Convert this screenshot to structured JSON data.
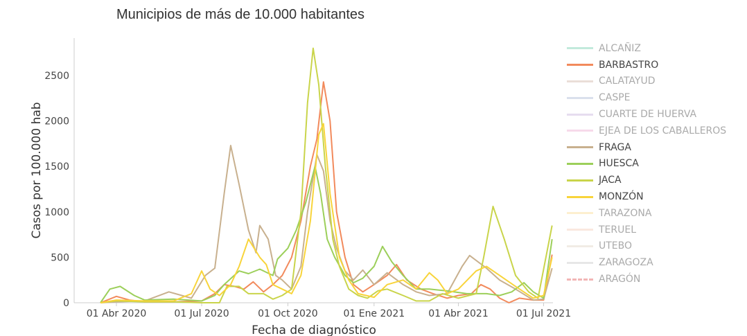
{
  "chart_data": {
    "type": "line",
    "title": "Municipios de más de 10.000 habitantes",
    "xlabel": "Fecha de diagnóstico",
    "ylabel": "Casos por 100.000 hab",
    "ylim": [
      0,
      2900
    ],
    "xlim": [
      "2020-03-01",
      "2021-07-12"
    ],
    "yticks": [
      0,
      500,
      1000,
      1500,
      2000,
      2500
    ],
    "xticks": [
      {
        "date": "2020-04-01",
        "label": "01 Abr 2020"
      },
      {
        "date": "2020-07-01",
        "label": "01 Jul 2020"
      },
      {
        "date": "2020-10-01",
        "label": "01 Oct 2020"
      },
      {
        "date": "2021-01-01",
        "label": "01 Ene 2021"
      },
      {
        "date": "2021-04-01",
        "label": "01 Abr 2021"
      },
      {
        "date": "2021-07-01",
        "label": "01 Jul 2021"
      }
    ],
    "legend_position": "right",
    "series": [
      {
        "name": "ALCAÑIZ",
        "color": "#8fd8c0",
        "visible": false,
        "points": []
      },
      {
        "name": "BARBASTRO",
        "color": "#f28a5c",
        "visible": true,
        "points": [
          [
            "2020-03-15",
            0
          ],
          [
            "2020-04-01",
            70
          ],
          [
            "2020-04-15",
            30
          ],
          [
            "2020-05-01",
            10
          ],
          [
            "2020-06-01",
            10
          ],
          [
            "2020-07-01",
            20
          ],
          [
            "2020-07-15",
            100
          ],
          [
            "2020-07-25",
            200
          ],
          [
            "2020-08-05",
            180
          ],
          [
            "2020-08-15",
            150
          ],
          [
            "2020-08-25",
            230
          ],
          [
            "2020-09-05",
            120
          ],
          [
            "2020-09-15",
            200
          ],
          [
            "2020-09-25",
            300
          ],
          [
            "2020-10-05",
            500
          ],
          [
            "2020-10-15",
            900
          ],
          [
            "2020-10-25",
            1500
          ],
          [
            "2020-11-01",
            1800
          ],
          [
            "2020-11-08",
            2430
          ],
          [
            "2020-11-15",
            2000
          ],
          [
            "2020-11-22",
            1000
          ],
          [
            "2020-12-01",
            500
          ],
          [
            "2020-12-10",
            200
          ],
          [
            "2020-12-20",
            120
          ],
          [
            "2021-01-01",
            200
          ],
          [
            "2021-01-15",
            300
          ],
          [
            "2021-01-25",
            420
          ],
          [
            "2021-02-05",
            250
          ],
          [
            "2021-02-20",
            150
          ],
          [
            "2021-03-05",
            100
          ],
          [
            "2021-03-20",
            50
          ],
          [
            "2021-04-01",
            80
          ],
          [
            "2021-04-15",
            100
          ],
          [
            "2021-04-25",
            200
          ],
          [
            "2021-05-05",
            150
          ],
          [
            "2021-05-15",
            50
          ],
          [
            "2021-05-25",
            0
          ],
          [
            "2021-06-05",
            50
          ],
          [
            "2021-06-20",
            30
          ],
          [
            "2021-07-01",
            30
          ],
          [
            "2021-07-10",
            530
          ]
        ]
      },
      {
        "name": "CALATAYUD",
        "color": "#d9c2b8",
        "visible": false,
        "points": []
      },
      {
        "name": "CASPE",
        "color": "#bcc6dc",
        "visible": false,
        "points": []
      },
      {
        "name": "CUARTE DE HUERVA",
        "color": "#d2c1e2",
        "visible": false,
        "points": []
      },
      {
        "name": "EJEA DE LOS CABALLEROS",
        "color": "#f0bcd8",
        "visible": false,
        "points": []
      },
      {
        "name": "FRAGA",
        "color": "#c8b08e",
        "visible": true,
        "points": [
          [
            "2020-03-15",
            0
          ],
          [
            "2020-04-01",
            10
          ],
          [
            "2020-05-01",
            20
          ],
          [
            "2020-05-27",
            120
          ],
          [
            "2020-06-20",
            50
          ],
          [
            "2020-07-05",
            300
          ],
          [
            "2020-07-15",
            380
          ],
          [
            "2020-07-25",
            1200
          ],
          [
            "2020-08-01",
            1730
          ],
          [
            "2020-08-10",
            1300
          ],
          [
            "2020-08-20",
            800
          ],
          [
            "2020-08-28",
            550
          ],
          [
            "2020-09-01",
            850
          ],
          [
            "2020-09-10",
            700
          ],
          [
            "2020-09-18",
            300
          ],
          [
            "2020-09-25",
            250
          ],
          [
            "2020-10-05",
            150
          ],
          [
            "2020-10-15",
            400
          ],
          [
            "2020-10-22",
            1000
          ],
          [
            "2020-11-01",
            1630
          ],
          [
            "2020-11-08",
            1450
          ],
          [
            "2020-11-15",
            900
          ],
          [
            "2020-11-22",
            600
          ],
          [
            "2020-12-01",
            350
          ],
          [
            "2020-12-10",
            250
          ],
          [
            "2020-12-20",
            360
          ],
          [
            "2021-01-01",
            200
          ],
          [
            "2021-01-15",
            330
          ],
          [
            "2021-02-01",
            200
          ],
          [
            "2021-02-15",
            120
          ],
          [
            "2021-03-01",
            80
          ],
          [
            "2021-03-20",
            100
          ],
          [
            "2021-04-05",
            400
          ],
          [
            "2021-04-13",
            520
          ],
          [
            "2021-05-01",
            380
          ],
          [
            "2021-05-15",
            250
          ],
          [
            "2021-06-01",
            150
          ],
          [
            "2021-06-20",
            30
          ],
          [
            "2021-07-01",
            40
          ],
          [
            "2021-07-10",
            380
          ]
        ]
      },
      {
        "name": "HUESCA",
        "color": "#9ccf5a",
        "visible": true,
        "points": [
          [
            "2020-03-15",
            0
          ],
          [
            "2020-03-25",
            150
          ],
          [
            "2020-04-05",
            180
          ],
          [
            "2020-04-20",
            80
          ],
          [
            "2020-05-01",
            30
          ],
          [
            "2020-06-01",
            40
          ],
          [
            "2020-07-01",
            20
          ],
          [
            "2020-07-15",
            80
          ],
          [
            "2020-07-25",
            200
          ],
          [
            "2020-08-10",
            350
          ],
          [
            "2020-08-20",
            320
          ],
          [
            "2020-09-01",
            370
          ],
          [
            "2020-09-15",
            300
          ],
          [
            "2020-09-20",
            480
          ],
          [
            "2020-10-01",
            600
          ],
          [
            "2020-10-10",
            800
          ],
          [
            "2020-10-20",
            1100
          ],
          [
            "2020-10-30",
            1500
          ],
          [
            "2020-11-05",
            1200
          ],
          [
            "2020-11-12",
            700
          ],
          [
            "2020-11-20",
            500
          ],
          [
            "2020-12-01",
            300
          ],
          [
            "2020-12-10",
            220
          ],
          [
            "2020-12-20",
            270
          ],
          [
            "2021-01-01",
            400
          ],
          [
            "2021-01-10",
            620
          ],
          [
            "2021-01-20",
            450
          ],
          [
            "2021-02-01",
            300
          ],
          [
            "2021-02-15",
            150
          ],
          [
            "2021-03-01",
            150
          ],
          [
            "2021-03-20",
            130
          ],
          [
            "2021-04-10",
            100
          ],
          [
            "2021-05-01",
            100
          ],
          [
            "2021-05-15",
            80
          ],
          [
            "2021-05-28",
            120
          ],
          [
            "2021-06-10",
            220
          ],
          [
            "2021-06-20",
            120
          ],
          [
            "2021-07-01",
            50
          ],
          [
            "2021-07-10",
            700
          ]
        ]
      },
      {
        "name": "JACA",
        "color": "#c9d44a",
        "visible": true,
        "points": [
          [
            "2020-03-15",
            0
          ],
          [
            "2020-04-01",
            20
          ],
          [
            "2020-05-01",
            10
          ],
          [
            "2020-06-01",
            10
          ],
          [
            "2020-07-01",
            0
          ],
          [
            "2020-07-20",
            0
          ],
          [
            "2020-07-28",
            180
          ],
          [
            "2020-08-10",
            180
          ],
          [
            "2020-08-20",
            100
          ],
          [
            "2020-09-05",
            100
          ],
          [
            "2020-09-15",
            40
          ],
          [
            "2020-09-25",
            80
          ],
          [
            "2020-10-05",
            150
          ],
          [
            "2020-10-15",
            1000
          ],
          [
            "2020-10-22",
            2200
          ],
          [
            "2020-10-28",
            2800
          ],
          [
            "2020-11-03",
            2400
          ],
          [
            "2020-11-10",
            1500
          ],
          [
            "2020-11-18",
            700
          ],
          [
            "2020-11-25",
            400
          ],
          [
            "2020-12-05",
            150
          ],
          [
            "2020-12-15",
            80
          ],
          [
            "2020-12-25",
            50
          ],
          [
            "2021-01-05",
            130
          ],
          [
            "2021-01-15",
            150
          ],
          [
            "2021-02-01",
            80
          ],
          [
            "2021-02-15",
            20
          ],
          [
            "2021-03-01",
            20
          ],
          [
            "2021-03-15",
            100
          ],
          [
            "2021-04-01",
            50
          ],
          [
            "2021-04-20",
            100
          ],
          [
            "2021-04-28",
            500
          ],
          [
            "2021-05-08",
            1060
          ],
          [
            "2021-05-20",
            700
          ],
          [
            "2021-06-01",
            300
          ],
          [
            "2021-06-15",
            120
          ],
          [
            "2021-06-25",
            50
          ],
          [
            "2021-07-10",
            850
          ]
        ]
      },
      {
        "name": "MONZÓN",
        "color": "#f8d43a",
        "visible": true,
        "points": [
          [
            "2020-03-15",
            0
          ],
          [
            "2020-04-01",
            30
          ],
          [
            "2020-05-01",
            20
          ],
          [
            "2020-06-01",
            20
          ],
          [
            "2020-06-20",
            100
          ],
          [
            "2020-07-01",
            350
          ],
          [
            "2020-07-10",
            150
          ],
          [
            "2020-07-20",
            80
          ],
          [
            "2020-08-01",
            200
          ],
          [
            "2020-08-10",
            400
          ],
          [
            "2020-08-20",
            700
          ],
          [
            "2020-09-01",
            500
          ],
          [
            "2020-09-08",
            420
          ],
          [
            "2020-09-15",
            200
          ],
          [
            "2020-09-25",
            150
          ],
          [
            "2020-10-05",
            100
          ],
          [
            "2020-10-15",
            300
          ],
          [
            "2020-10-25",
            900
          ],
          [
            "2020-11-03",
            1850
          ],
          [
            "2020-11-08",
            1970
          ],
          [
            "2020-11-15",
            1200
          ],
          [
            "2020-11-25",
            500
          ],
          [
            "2020-12-05",
            250
          ],
          [
            "2020-12-15",
            100
          ],
          [
            "2021-01-01",
            60
          ],
          [
            "2021-01-15",
            200
          ],
          [
            "2021-02-01",
            250
          ],
          [
            "2021-02-15",
            150
          ],
          [
            "2021-03-01",
            330
          ],
          [
            "2021-03-10",
            250
          ],
          [
            "2021-03-20",
            100
          ],
          [
            "2021-04-01",
            150
          ],
          [
            "2021-04-20",
            350
          ],
          [
            "2021-05-01",
            400
          ],
          [
            "2021-05-15",
            300
          ],
          [
            "2021-06-01",
            180
          ],
          [
            "2021-06-20",
            50
          ],
          [
            "2021-07-01",
            80
          ],
          [
            "2021-07-10",
            500
          ]
        ]
      },
      {
        "name": "TARAZONA",
        "color": "#fbe2a8",
        "visible": false,
        "points": []
      },
      {
        "name": "TERUEL",
        "color": "#f5d6c4",
        "visible": false,
        "points": []
      },
      {
        "name": "UTEBO",
        "color": "#e6dccf",
        "visible": false,
        "points": []
      },
      {
        "name": "ZARAGOZA",
        "color": "#d3d3d3",
        "visible": false,
        "points": []
      },
      {
        "name": "ARAGÓN",
        "color": "#e87a7a",
        "visible": false,
        "dashed": true,
        "points": []
      }
    ]
  }
}
